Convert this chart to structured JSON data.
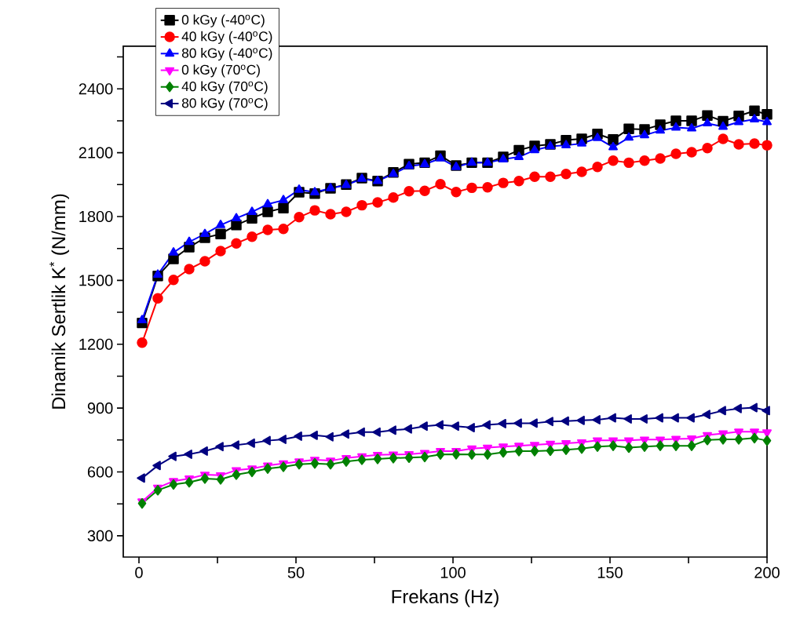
{
  "chart_data": {
    "type": "line",
    "xlabel": "Frekans (Hz)",
    "ylabel": "Dinamik Sertlik K$^{*}$ (N/mm)",
    "x": [
      1,
      6,
      11,
      16,
      21,
      26,
      31,
      36,
      41,
      46,
      51,
      56,
      61,
      66,
      71,
      76,
      81,
      86,
      91,
      96,
      101,
      106,
      111,
      116,
      121,
      126,
      131,
      136,
      141,
      146,
      151,
      156,
      161,
      166,
      171,
      176,
      181,
      186,
      191,
      196,
      200
    ],
    "xlim": [
      -5,
      200
    ],
    "ylim": [
      200,
      2600
    ],
    "xticks": [
      0,
      {
        "value": 25,
        "label": null
      },
      50,
      {
        "value": 75,
        "label": null
      },
      100,
      {
        "value": 125,
        "label": null
      },
      150,
      {
        "value": 175,
        "label": null
      },
      200
    ],
    "yticks": [
      300,
      {
        "value": 450,
        "label": null
      },
      600,
      {
        "value": 750,
        "label": null
      },
      900,
      {
        "value": 1050,
        "label": null
      },
      1200,
      {
        "value": 1350,
        "label": null
      },
      1500,
      {
        "value": 1650,
        "label": null
      },
      1800,
      {
        "value": 1950,
        "label": null
      },
      2100,
      {
        "value": 2250,
        "label": null
      },
      2400,
      {
        "value": 2550,
        "label": null
      }
    ],
    "legend": "top left",
    "grid": false,
    "line_style": "solid",
    "series": [
      {
        "name": "0 kGy (-40$^{o}$C)",
        "color": "#000000",
        "marker": "square",
        "values": [
          1300,
          1521,
          1601,
          1656,
          1700,
          1718,
          1760,
          1792,
          1822,
          1840,
          1914,
          1908,
          1933,
          1950,
          1981,
          1967,
          2007,
          2046,
          2053,
          2086,
          2040,
          2053,
          2053,
          2080,
          2112,
          2132,
          2139,
          2159,
          2165,
          2188,
          2162,
          2212,
          2209,
          2231,
          2250,
          2250,
          2275,
          2248,
          2273,
          2297,
          2280
        ]
      },
      {
        "name": "40 kGy (-40$^{o}$C)",
        "color": "#ff0000",
        "marker": "circle",
        "values": [
          1207,
          1416,
          1502,
          1553,
          1590,
          1638,
          1674,
          1705,
          1737,
          1742,
          1797,
          1829,
          1811,
          1822,
          1853,
          1866,
          1889,
          1919,
          1921,
          1952,
          1915,
          1935,
          1937,
          1958,
          1967,
          1987,
          1987,
          2000,
          2010,
          2033,
          2063,
          2053,
          2063,
          2073,
          2095,
          2102,
          2122,
          2165,
          2139,
          2143,
          2135
        ]
      },
      {
        "name": "80 kGy (-40$^{o}$C)",
        "color": "#0000ff",
        "marker": "triangle",
        "values": [
          1313,
          1527,
          1631,
          1681,
          1718,
          1760,
          1792,
          1822,
          1858,
          1877,
          1926,
          1914,
          1933,
          1948,
          1977,
          1967,
          2000,
          2037,
          2046,
          2073,
          2033,
          2053,
          2053,
          2069,
          2080,
          2112,
          2130,
          2135,
          2143,
          2169,
          2126,
          2171,
          2182,
          2204,
          2218,
          2214,
          2238,
          2222,
          2244,
          2257,
          2244
        ]
      },
      {
        "name": "0 kGy (70$^{o}$C)",
        "color": "#ff00ff",
        "marker": "triangle-down",
        "values": [
          461,
          526,
          557,
          569,
          587,
          584,
          608,
          616,
          630,
          640,
          649,
          657,
          653,
          665,
          673,
          680,
          682,
          683,
          689,
          698,
          698,
          710,
          714,
          719,
          723,
          727,
          732,
          735,
          739,
          748,
          748,
          748,
          752,
          752,
          755,
          757,
          773,
          781,
          789,
          789,
          786
        ]
      },
      {
        "name": "40 kGy (70$^{o}$C)",
        "color": "#008000",
        "marker": "diamond",
        "values": [
          452,
          514,
          541,
          551,
          569,
          565,
          587,
          600,
          616,
          624,
          636,
          640,
          636,
          649,
          657,
          661,
          665,
          667,
          670,
          682,
          683,
          682,
          682,
          692,
          698,
          698,
          700,
          704,
          710,
          719,
          723,
          714,
          719,
          723,
          723,
          723,
          750,
          753,
          753,
          759,
          747
        ]
      },
      {
        "name": "80 kGy (70$^{o}$C)",
        "color": "#000080",
        "marker": "triangle-left",
        "values": [
          571,
          630,
          673,
          683,
          698,
          719,
          726,
          735,
          747,
          753,
          768,
          772,
          765,
          778,
          787,
          787,
          796,
          802,
          815,
          821,
          815,
          808,
          821,
          827,
          829,
          829,
          837,
          839,
          842,
          845,
          854,
          849,
          849,
          854,
          854,
          854,
          870,
          888,
          898,
          902,
          888
        ]
      }
    ]
  }
}
